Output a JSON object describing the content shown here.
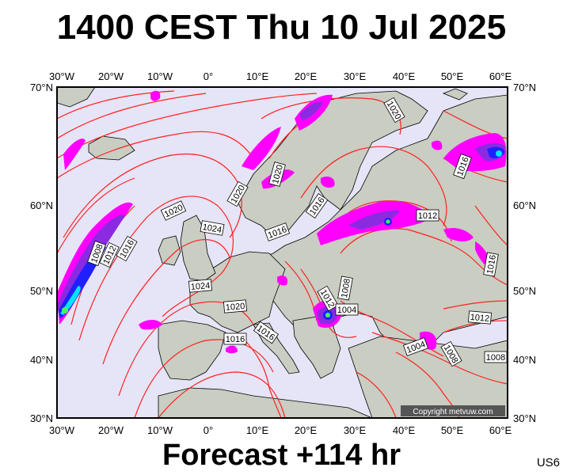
{
  "header": {
    "title": "1400 CEST Thu 10 Jul 2025"
  },
  "footer": {
    "forecast": "Forecast +114 hr",
    "code": "US6"
  },
  "map": {
    "copyright": "Copyright metvuw.com",
    "lon_labels": [
      "30°W",
      "20°W",
      "10°W",
      "0°",
      "10°E",
      "20°E",
      "30°E",
      "40°E",
      "50°E",
      "60°E"
    ],
    "lat_labels_left": [
      "70°N",
      "60°N",
      "50°N",
      "40°N",
      "30°N"
    ],
    "lat_labels_right": [
      "70°N",
      "60°N",
      "50°N",
      "40°N",
      "30°N"
    ],
    "isobar_labels": [
      {
        "text": "1020",
        "tag": "iso-1020-north"
      },
      {
        "text": "1020",
        "tag": "iso-1020-scandinavia"
      },
      {
        "text": "1020",
        "tag": "iso-1020-norway"
      },
      {
        "text": "1016",
        "tag": "iso-1016-russia-north"
      },
      {
        "text": "1016",
        "tag": "iso-1016-sweden"
      },
      {
        "text": "1016",
        "tag": "iso-1016-baltic"
      },
      {
        "text": "1020",
        "tag": "iso-1020-atlantic"
      },
      {
        "text": "1024",
        "tag": "iso-1024-ireland"
      },
      {
        "text": "1012",
        "tag": "iso-1012-russia"
      },
      {
        "text": "1008",
        "tag": "iso-1008-low"
      },
      {
        "text": "1012",
        "tag": "iso-1012-low"
      },
      {
        "text": "1016",
        "tag": "iso-1016-low"
      },
      {
        "text": "1016",
        "tag": "iso-1016-east"
      },
      {
        "text": "1024",
        "tag": "iso-1024-france"
      },
      {
        "text": "1008",
        "tag": "iso-1008-ukraine"
      },
      {
        "text": "1012",
        "tag": "iso-1012-balkans"
      },
      {
        "text": "1004",
        "tag": "iso-1004-balkans"
      },
      {
        "text": "1020",
        "tag": "iso-1020-biscay"
      },
      {
        "text": "1016",
        "tag": "iso-1016-spain"
      },
      {
        "text": "1016",
        "tag": "iso-1016-italy"
      },
      {
        "text": "1012",
        "tag": "iso-1012-caspian"
      },
      {
        "text": "1004",
        "tag": "iso-1004-turkey"
      },
      {
        "text": "1008",
        "tag": "iso-1008-caucasus"
      },
      {
        "text": "1008",
        "tag": "iso-1008-iran"
      }
    ]
  },
  "colors": {
    "sea": "#e6e4f7",
    "land": "#c8ccc0",
    "isobar": "#ff2020",
    "precip_magenta": "#ff00ff",
    "precip_purple": "#8a2be2",
    "precip_blue": "#2020ff",
    "precip_cyan": "#00e5ff",
    "precip_green": "#40ff60"
  }
}
